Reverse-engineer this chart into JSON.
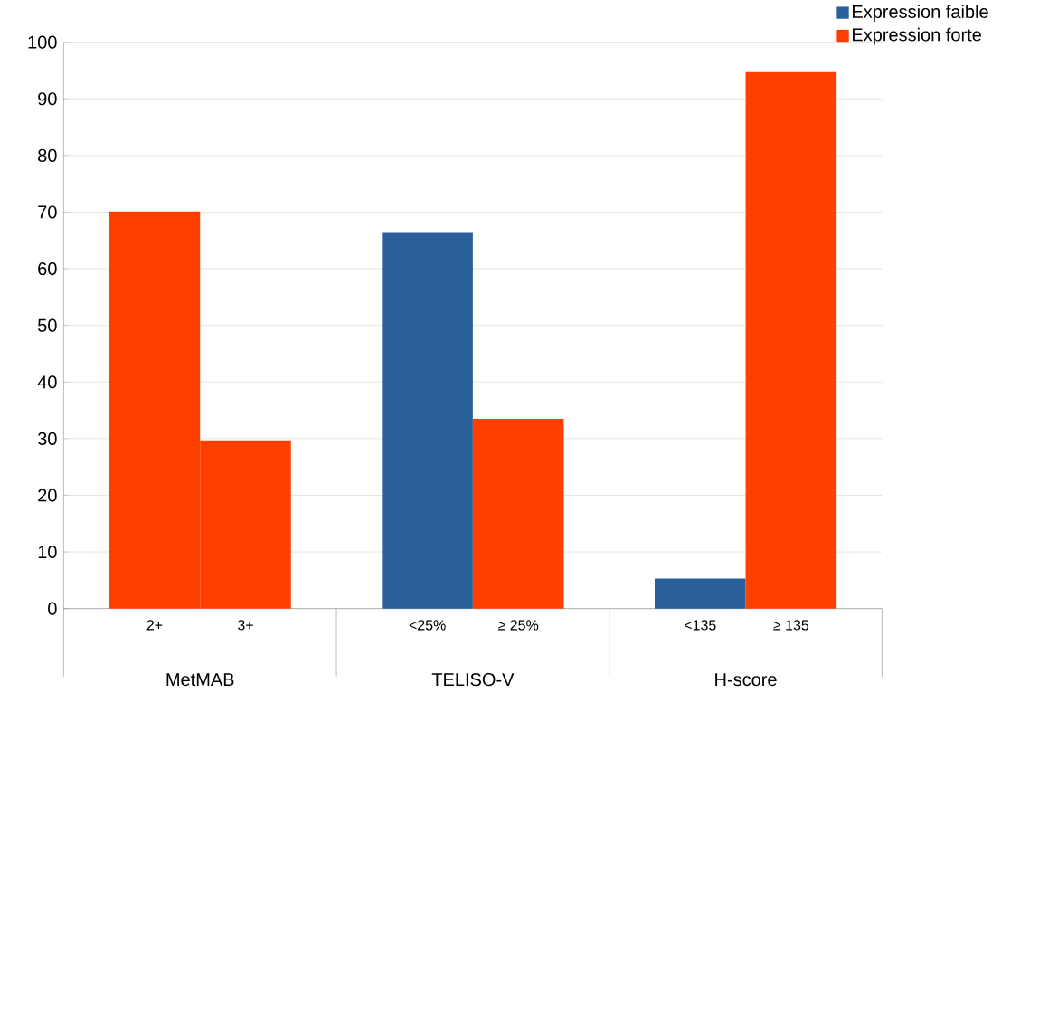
{
  "chart_data": {
    "type": "bar",
    "categories": [
      "2+",
      "3+",
      "<25%",
      "≥ 25%",
      "<135",
      "≥ 135"
    ],
    "series": [
      {
        "name": "Expression faible",
        "color": "#2a6099",
        "values": [
          null,
          null,
          66.5,
          null,
          5.3,
          null
        ]
      },
      {
        "name": "Expression forte",
        "color": "#ff3f00",
        "values": [
          70.1,
          29.7,
          null,
          33.5,
          null,
          94.7
        ]
      }
    ],
    "annotations": [
      "MetMAB",
      "TELISO-V",
      "H-score"
    ],
    "ylim": [
      0,
      100
    ],
    "yticks": [
      0,
      10,
      20,
      30,
      40,
      50,
      60,
      70,
      80,
      90,
      100
    ],
    "grid": "y",
    "legend": "top right"
  }
}
